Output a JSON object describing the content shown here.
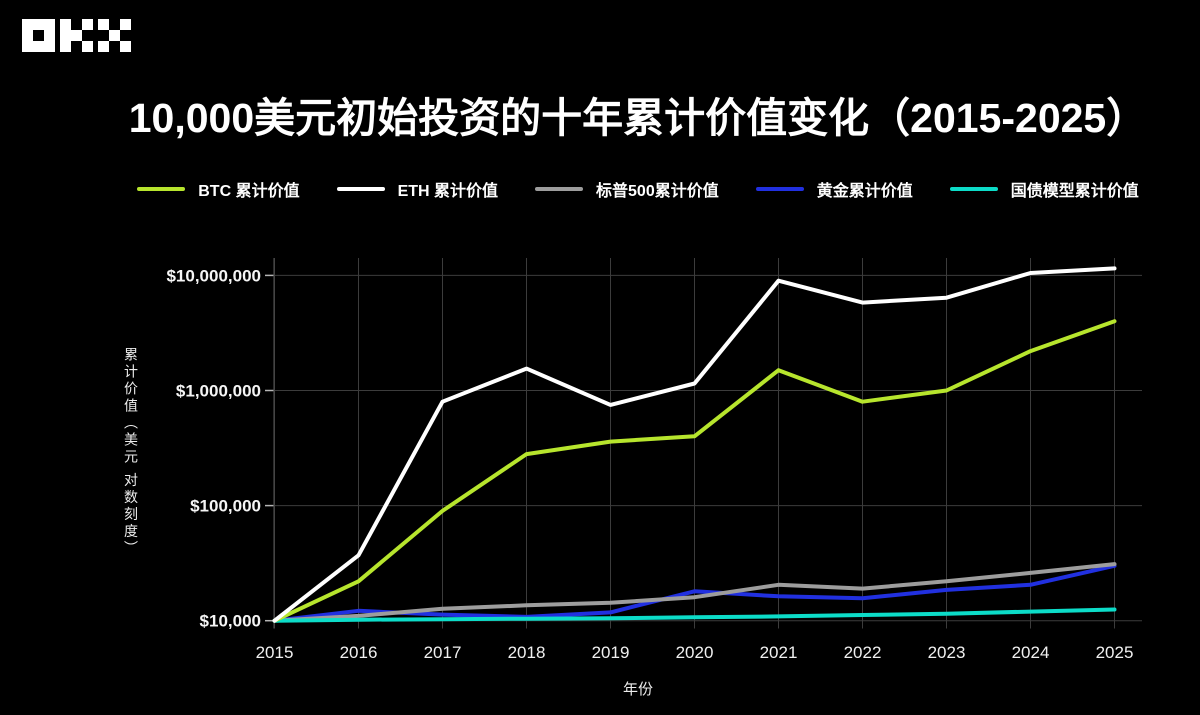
{
  "brand": {
    "name": "OKX"
  },
  "title": "10,000美元初始投资的十年累计价值变化（2015-2025）",
  "legend_position": "top",
  "chart_data": {
    "type": "line",
    "title": "10,000美元初始投资的十年累计价值变化（2015-2025）",
    "xlabel": "年份",
    "ylabel": "累计价值（美元 对数刻度）",
    "x": [
      2015,
      2016,
      2017,
      2018,
      2019,
      2020,
      2021,
      2022,
      2023,
      2024,
      2025
    ],
    "y_scale": "log10",
    "ylim": [
      10000,
      14000000
    ],
    "grid": true,
    "legend_position": "top",
    "background": "#000000",
    "y_ticks": [
      {
        "value": 10000,
        "label": "$10,000"
      },
      {
        "value": 100000,
        "label": "$100,000"
      },
      {
        "value": 1000000,
        "label": "$1,000,000"
      },
      {
        "value": 10000000,
        "label": "$10,000,000"
      }
    ],
    "series": [
      {
        "name": "BTC 累计价值",
        "color": "#b7e52d",
        "values": [
          10000,
          22000,
          90000,
          280000,
          360000,
          400000,
          1500000,
          800000,
          1000000,
          2200000,
          4000000
        ]
      },
      {
        "name": "ETH 累计价值",
        "color": "#ffffff",
        "values": [
          10000,
          37000,
          800000,
          1550000,
          750000,
          1150000,
          9000000,
          5800000,
          6400000,
          10500000,
          11500000
        ]
      },
      {
        "name": "标普500累计价值",
        "color": "#9d9d9d",
        "values": [
          10000,
          11000,
          12700,
          13600,
          14300,
          16000,
          20500,
          19000,
          22000,
          26000,
          31000
        ]
      },
      {
        "name": "黄金累计价值",
        "color": "#2130e0",
        "values": [
          10000,
          12200,
          11300,
          10800,
          11800,
          18000,
          16300,
          15700,
          18500,
          20500,
          30000
        ]
      },
      {
        "name": "国债模型累计价值",
        "color": "#0cdcc8",
        "values": [
          10000,
          10200,
          10300,
          10400,
          10500,
          10700,
          10900,
          11200,
          11500,
          12000,
          12500
        ]
      }
    ]
  }
}
